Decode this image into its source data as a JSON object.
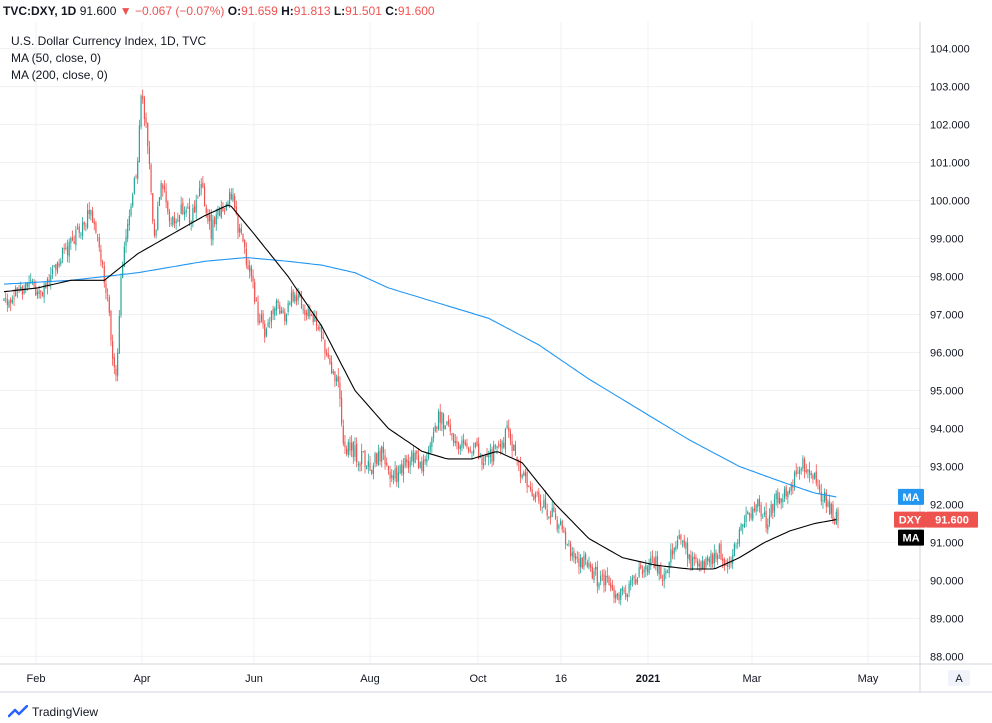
{
  "header": {
    "symbol": "TVC:DXY, 1D",
    "last": "91.600",
    "arrow": "▼",
    "change": "−0.067 (−0.07%)",
    "o_label": "O:",
    "o_value": "91.659",
    "h_label": "H:",
    "h_value": "91.813",
    "l_label": "L:",
    "l_value": "91.501",
    "c_label": "C:",
    "c_value": "91.600"
  },
  "legend": {
    "title": "U.S. Dollar Currency Index, 1D, TVC",
    "ma50": "MA (50, close, 0)",
    "ma200": "MA (200, close, 0)"
  },
  "right_labels": {
    "ma200_label": "MA",
    "symbol_label": "DXY",
    "price_label": "91.600",
    "ma50_label": "MA"
  },
  "footer": {
    "brand": "TradingView",
    "auto_button": "A"
  },
  "colors": {
    "up": "#26a69a",
    "down": "#ef5350",
    "ma50": "#000000",
    "ma200": "#2196f3",
    "grid": "#eef0f3",
    "axis": "#d1d4dc"
  },
  "chart_data": {
    "type": "candlestick",
    "title": "U.S. Dollar Currency Index, 1D, TVC",
    "y_axis_ticks": [
      88.0,
      89.0,
      90.0,
      91.0,
      92.0,
      93.0,
      94.0,
      95.0,
      96.0,
      97.0,
      98.0,
      99.0,
      100.0,
      101.0,
      102.0,
      103.0,
      104.0
    ],
    "x_axis_labels": [
      "Feb",
      "Apr",
      "Jun",
      "Aug",
      "Oct",
      "16",
      "2021",
      "Mar",
      "May"
    ],
    "ylim": [
      87.8,
      104.7
    ],
    "close_path": [
      [
        0,
        97.3
      ],
      [
        8,
        97.6
      ],
      [
        15,
        97.9
      ],
      [
        22,
        97.5
      ],
      [
        30,
        98.2
      ],
      [
        38,
        98.8
      ],
      [
        46,
        99.2
      ],
      [
        52,
        99.8
      ],
      [
        56,
        99.0
      ],
      [
        60,
        98.0
      ],
      [
        64,
        96.5
      ],
      [
        67,
        95.2
      ],
      [
        70,
        98.0
      ],
      [
        74,
        99.5
      ],
      [
        80,
        101.0
      ],
      [
        82,
        102.8
      ],
      [
        86,
        101.5
      ],
      [
        90,
        99.0
      ],
      [
        94,
        100.5
      ],
      [
        100,
        99.3
      ],
      [
        106,
        99.8
      ],
      [
        112,
        99.5
      ],
      [
        118,
        100.3
      ],
      [
        124,
        99.2
      ],
      [
        130,
        99.8
      ],
      [
        136,
        100.1
      ],
      [
        142,
        99.0
      ],
      [
        148,
        98.0
      ],
      [
        152,
        97.0
      ],
      [
        156,
        96.6
      ],
      [
        162,
        97.2
      ],
      [
        168,
        96.9
      ],
      [
        174,
        97.6
      ],
      [
        180,
        97.2
      ],
      [
        186,
        96.8
      ],
      [
        192,
        96.2
      ],
      [
        196,
        95.7
      ],
      [
        200,
        95.2
      ],
      [
        203,
        93.6
      ],
      [
        208,
        93.4
      ],
      [
        214,
        93.2
      ],
      [
        220,
        93.0
      ],
      [
        226,
        93.3
      ],
      [
        232,
        92.7
      ],
      [
        238,
        92.9
      ],
      [
        244,
        93.3
      ],
      [
        250,
        93.0
      ],
      [
        255,
        93.4
      ],
      [
        260,
        94.4
      ],
      [
        266,
        94.0
      ],
      [
        272,
        93.6
      ],
      [
        278,
        93.6
      ],
      [
        284,
        93.3
      ],
      [
        290,
        93.2
      ],
      [
        296,
        93.6
      ],
      [
        302,
        93.9
      ],
      [
        306,
        93.2
      ],
      [
        310,
        92.8
      ],
      [
        316,
        92.3
      ],
      [
        322,
        92.0
      ],
      [
        328,
        91.7
      ],
      [
        334,
        91.3
      ],
      [
        340,
        90.6
      ],
      [
        346,
        90.5
      ],
      [
        352,
        90.2
      ],
      [
        358,
        90.0
      ],
      [
        364,
        89.8
      ],
      [
        370,
        89.6
      ],
      [
        376,
        90.0
      ],
      [
        382,
        90.3
      ],
      [
        388,
        90.6
      ],
      [
        394,
        90.1
      ],
      [
        400,
        90.8
      ],
      [
        406,
        91.2
      ],
      [
        410,
        90.5
      ],
      [
        416,
        90.3
      ],
      [
        422,
        90.5
      ],
      [
        428,
        90.8
      ],
      [
        432,
        90.2
      ],
      [
        438,
        90.9
      ],
      [
        444,
        91.7
      ],
      [
        450,
        92.0
      ],
      [
        456,
        91.6
      ],
      [
        462,
        92.1
      ],
      [
        468,
        92.4
      ],
      [
        474,
        92.8
      ],
      [
        478,
        93.1
      ],
      [
        482,
        92.9
      ],
      [
        486,
        92.5
      ],
      [
        490,
        92.3
      ],
      [
        494,
        91.9
      ],
      [
        498,
        91.6
      ]
    ],
    "ma50": [
      [
        0,
        97.6
      ],
      [
        20,
        97.7
      ],
      [
        40,
        97.9
      ],
      [
        60,
        97.9
      ],
      [
        80,
        98.6
      ],
      [
        100,
        99.1
      ],
      [
        120,
        99.6
      ],
      [
        135,
        99.9
      ],
      [
        150,
        99.1
      ],
      [
        170,
        98.0
      ],
      [
        190,
        96.7
      ],
      [
        210,
        95.0
      ],
      [
        230,
        94.0
      ],
      [
        250,
        93.4
      ],
      [
        265,
        93.2
      ],
      [
        280,
        93.2
      ],
      [
        295,
        93.4
      ],
      [
        310,
        93.1
      ],
      [
        330,
        92.0
      ],
      [
        350,
        91.1
      ],
      [
        370,
        90.6
      ],
      [
        390,
        90.4
      ],
      [
        410,
        90.3
      ],
      [
        425,
        90.3
      ],
      [
        440,
        90.6
      ],
      [
        455,
        91.0
      ],
      [
        470,
        91.3
      ],
      [
        485,
        91.5
      ],
      [
        498,
        91.6
      ]
    ],
    "ma200": [
      [
        0,
        97.8
      ],
      [
        40,
        97.9
      ],
      [
        80,
        98.1
      ],
      [
        120,
        98.4
      ],
      [
        145,
        98.5
      ],
      [
        170,
        98.4
      ],
      [
        190,
        98.3
      ],
      [
        210,
        98.1
      ],
      [
        230,
        97.7
      ],
      [
        260,
        97.3
      ],
      [
        290,
        96.9
      ],
      [
        320,
        96.2
      ],
      [
        350,
        95.3
      ],
      [
        380,
        94.5
      ],
      [
        410,
        93.7
      ],
      [
        440,
        93.0
      ],
      [
        465,
        92.6
      ],
      [
        485,
        92.3
      ],
      [
        498,
        92.2
      ]
    ],
    "last_price": 91.6,
    "ma50_last": 91.6,
    "ma200_last": 92.2
  }
}
